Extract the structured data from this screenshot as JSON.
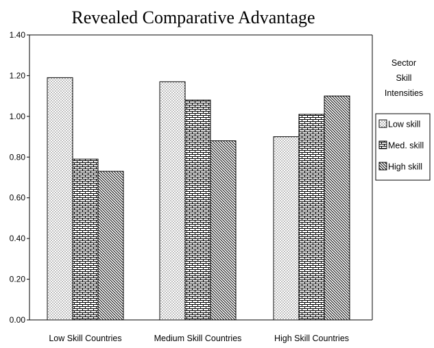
{
  "chart_data": {
    "type": "bar",
    "title": "Revealed Comparative Advantage",
    "xlabel": "",
    "ylabel": "",
    "ylim": [
      0,
      1.4
    ],
    "yticks": [
      "0.00",
      "0.20",
      "0.40",
      "0.60",
      "0.80",
      "1.00",
      "1.20",
      "1.40"
    ],
    "categories": [
      "Low Skill Countries",
      "Medium Skill Countries",
      "High Skill Countries"
    ],
    "series": [
      {
        "name": "Low skill",
        "values": [
          1.19,
          1.17,
          0.9
        ]
      },
      {
        "name": "Med. skill",
        "values": [
          0.79,
          1.08,
          1.01
        ]
      },
      {
        "name": "High skill",
        "values": [
          0.73,
          0.88,
          1.1
        ]
      }
    ],
    "legend": {
      "title_lines": [
        "Sector",
        "Skill",
        "Intensities"
      ],
      "placement": "right"
    },
    "grid": false,
    "colors": {
      "bar_outline": "#000000",
      "background": "#ffffff"
    }
  }
}
